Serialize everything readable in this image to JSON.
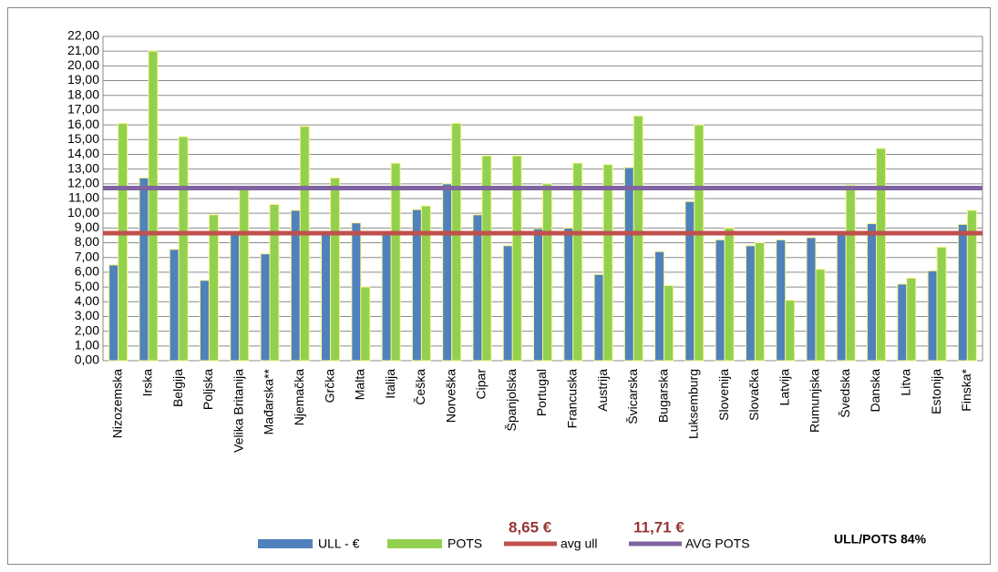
{
  "chart_data": {
    "type": "bar",
    "categories": [
      "Nizozemska",
      "Irska",
      "Belgija",
      "Poljska",
      "Velika Britanija",
      "Mađarska**",
      "Njemačka",
      "Grčka",
      "Malta",
      "Italija",
      "Češka",
      "Norveška",
      "Cipar",
      "Španjolska",
      "Portugal",
      "Francuska",
      "Austrija",
      "Švicarska",
      "Bugarska",
      "Luksemburg",
      "Slovenija",
      "Slovačka",
      "Latvija",
      "Rumunjska",
      "Švedska",
      "Danska",
      "Litva",
      "Estonija",
      "Finska*"
    ],
    "series": [
      {
        "name": "ULL - €",
        "color": "#4f81bd",
        "values": [
          6.5,
          12.4,
          7.55,
          5.45,
          8.6,
          7.25,
          10.2,
          8.6,
          9.35,
          8.55,
          10.25,
          12.0,
          9.9,
          7.8,
          8.95,
          9.0,
          5.85,
          13.1,
          7.4,
          10.8,
          8.2,
          7.8,
          8.2,
          8.35,
          8.6,
          9.3,
          5.2,
          6.1,
          9.25
        ]
      },
      {
        "name": "POTS",
        "color": "#92d050",
        "values": [
          16.1,
          21.0,
          15.2,
          9.9,
          11.6,
          10.6,
          15.9,
          12.4,
          5.0,
          13.4,
          10.5,
          16.1,
          13.9,
          13.9,
          12.0,
          13.4,
          13.3,
          16.6,
          5.1,
          16.0,
          9.0,
          8.0,
          4.1,
          6.2,
          11.9,
          14.4,
          5.6,
          7.7,
          10.2
        ]
      }
    ],
    "reference_lines": [
      {
        "name": "avg ull",
        "value": 8.65,
        "value_label": "8,65 €",
        "color": "#c0504d"
      },
      {
        "name": "AVG POTS",
        "value": 11.71,
        "value_label": "11,71 €",
        "color": "#8064a2"
      }
    ],
    "annotation": "ULL/POTS 84%",
    "ylim": [
      0,
      22
    ],
    "yticks": [
      {
        "value": 0,
        "label": "0,00"
      },
      {
        "value": 1,
        "label": "1,00"
      },
      {
        "value": 2,
        "label": "2,00"
      },
      {
        "value": 3,
        "label": "3,00"
      },
      {
        "value": 4,
        "label": "4,00"
      },
      {
        "value": 5,
        "label": "5,00"
      },
      {
        "value": 6,
        "label": "6,00"
      },
      {
        "value": 7,
        "label": "7,00"
      },
      {
        "value": 8,
        "label": "8,00"
      },
      {
        "value": 9,
        "label": "9,00"
      },
      {
        "value": 10,
        "label": "10,00"
      },
      {
        "value": 11,
        "label": "11,00"
      },
      {
        "value": 12,
        "label": "12,00"
      },
      {
        "value": 13,
        "label": "13,00"
      },
      {
        "value": 14,
        "label": "14,00"
      },
      {
        "value": 15,
        "label": "15,00"
      },
      {
        "value": 16,
        "label": "16,00"
      },
      {
        "value": 17,
        "label": "17,00"
      },
      {
        "value": 18,
        "label": "18,00"
      },
      {
        "value": 19,
        "label": "19,00"
      },
      {
        "value": 20,
        "label": "20,00"
      },
      {
        "value": 21,
        "label": "21,00"
      },
      {
        "value": 22,
        "label": "22,00"
      }
    ],
    "grid": true
  }
}
